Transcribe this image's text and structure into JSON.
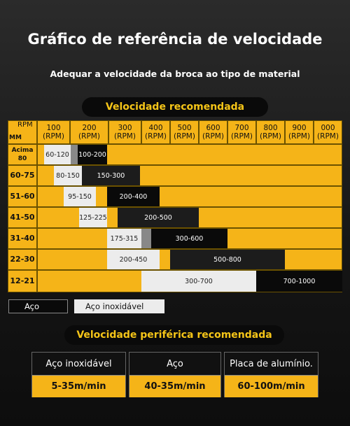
{
  "title": "Gráfico de referência de velocidade",
  "subtitle": "Adequar a velocidade da broca ao tipo de material",
  "section1": "Velocidade recomendada",
  "table": {
    "corner_rpm": "RPM",
    "corner_mm": "MM",
    "columns": [
      "100\n(RPM)",
      "200\n(RPM)",
      "300\n(RPM)",
      "400\n(RPM)",
      "500\n(RPM)",
      "600\n(RPM)",
      "700\n(RPM)",
      "800\n(RPM)",
      "900\n(RPM)",
      "000\n(RPM)"
    ],
    "rows": [
      {
        "label": "Acima\n80",
        "stainless": "60-120",
        "steel": "100-200"
      },
      {
        "label": "60-75",
        "stainless": "80-150",
        "steel": "150-300"
      },
      {
        "label": "51-60",
        "stainless": "95-150",
        "steel": "200-400"
      },
      {
        "label": "41-50",
        "stainless": "125-225",
        "steel": "200-500"
      },
      {
        "label": "31-40",
        "stainless": "175-315",
        "steel": "300-600"
      },
      {
        "label": "22-30",
        "stainless": "200-450",
        "steel": "500-800"
      },
      {
        "label": "12-21",
        "stainless": "300-700",
        "steel": "700-1000"
      }
    ]
  },
  "legend": [
    "Aço",
    "Aço inoxidável"
  ],
  "section2": "Velocidade periférica recomendada",
  "cards": [
    {
      "material": "Aço inoxidável",
      "speed": "5-35m/min"
    },
    {
      "material": "Aço",
      "speed": "40-35m/min"
    },
    {
      "material": "Placa de alumínio.",
      "speed": "60-100m/min"
    }
  ]
}
